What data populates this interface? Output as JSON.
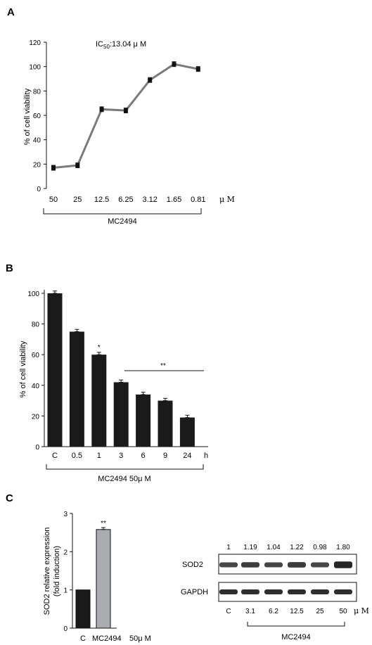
{
  "chart_data": [
    {
      "panel": "A",
      "type": "line",
      "annotation": "IC50:13.04 μ M",
      "annotation_main": "IC",
      "annotation_sub": "50",
      "annotation_rest": ":13.04 μ M",
      "ylabel": "% of cell viability",
      "ylim": [
        0,
        120
      ],
      "yticks": [
        "0",
        "20",
        "40",
        "60",
        "80",
        "100",
        "120"
      ],
      "categories": [
        "50",
        "25",
        "12.5",
        "6.25",
        "3.12",
        "1.65",
        "0.81"
      ],
      "unit": "μ M",
      "group_label": "MC2494",
      "values": [
        17,
        19,
        65,
        64,
        89,
        102,
        98
      ],
      "errors": [
        2,
        2,
        2,
        2,
        2,
        2,
        2
      ],
      "line_color": "#7a7a7a"
    },
    {
      "panel": "B",
      "type": "bar",
      "ylabel": "% of cell viability",
      "ylim": [
        0,
        100
      ],
      "yticks": [
        "0",
        "20",
        "40",
        "60",
        "80",
        "100"
      ],
      "categories": [
        "C",
        "0.5",
        "1",
        "3",
        "6",
        "9",
        "24"
      ],
      "unit": "h",
      "group_label": "MC2494  50μ M",
      "values": [
        100,
        75,
        60,
        42,
        34,
        30,
        19
      ],
      "errors": [
        1.5,
        1.5,
        1.5,
        1.5,
        1.5,
        1.5,
        1.5
      ],
      "single_star": "*",
      "double_star": "**",
      "bar_color": "#1a1a1a"
    },
    {
      "panel": "C",
      "type": "bar",
      "ylabel_line1": "SOD2 relative expression",
      "ylabel_line2": "(fold induction)",
      "ylim": [
        0,
        3
      ],
      "yticks": [
        "0",
        "1",
        "2",
        "3"
      ],
      "categories": [
        "C",
        "MC2494"
      ],
      "conc": "50μ M",
      "values": [
        1.0,
        2.58
      ],
      "errors": [
        0,
        0.05
      ],
      "star": "**",
      "colors": [
        "#1a1a1a",
        "#a9adb2"
      ]
    },
    {
      "panel": "C-blot",
      "type": "table",
      "quantification": [
        "1",
        "1.19",
        "1.04",
        "1.22",
        "0.98",
        "1.80"
      ],
      "rows": [
        "SOD2",
        "GAPDH"
      ],
      "lanes": [
        "C",
        "3.1",
        "6.2",
        "12.5",
        "25",
        "50"
      ],
      "unit": "μ M",
      "group_label": "MC2494"
    }
  ]
}
